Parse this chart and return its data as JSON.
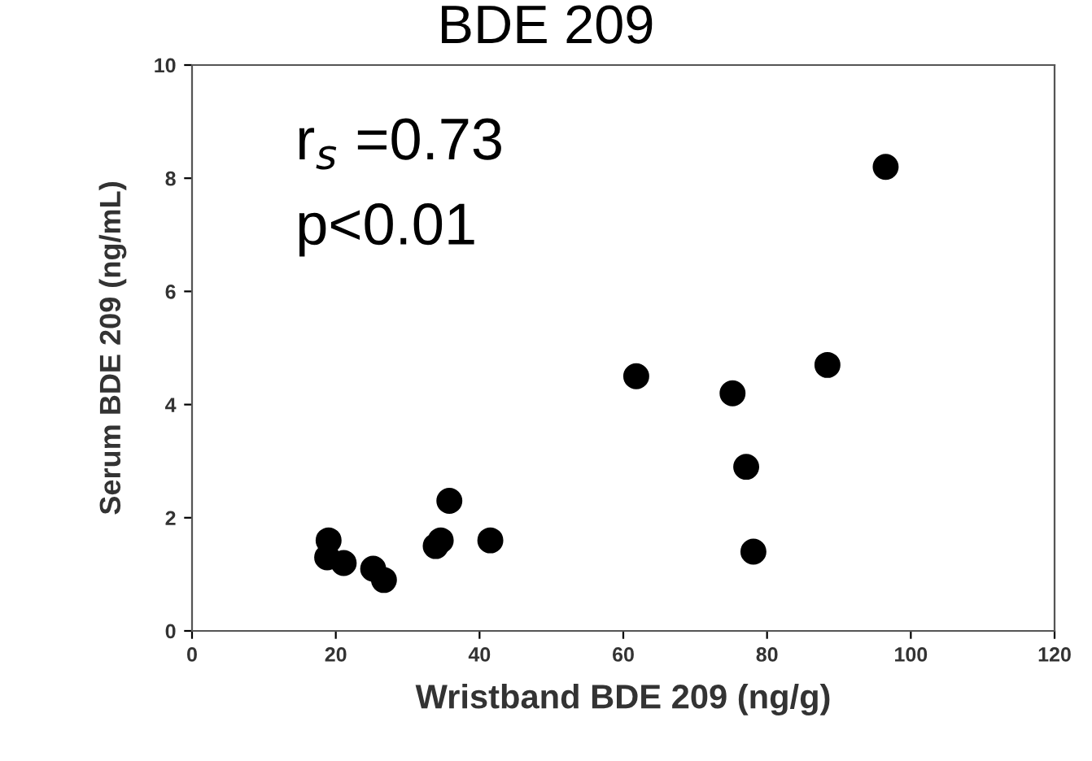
{
  "chart_data": {
    "type": "scatter",
    "title": "BDE 209",
    "xlabel": "Wristband BDE 209 (ng/g)",
    "ylabel": "Serum BDE 209 (ng/mL)",
    "annotations": [
      "r$_{s}$ =0.73",
      "p<0.01"
    ],
    "x": [
      19.0,
      18.8,
      21.1,
      25.2,
      26.7,
      33.9,
      34.6,
      35.8,
      41.5,
      61.8,
      75.2,
      77.1,
      78.1,
      88.4,
      96.5
    ],
    "values": [
      1.6,
      1.3,
      1.2,
      1.1,
      0.9,
      1.5,
      1.6,
      2.3,
      1.6,
      4.5,
      4.2,
      2.9,
      1.4,
      4.7,
      8.2
    ],
    "color": "#000000",
    "marker": "circle",
    "xlim": [
      0,
      120
    ],
    "xticks": [
      0,
      20,
      40,
      60,
      80,
      100,
      120
    ],
    "ylim": [
      0,
      10
    ],
    "yticks": [
      0,
      2,
      4,
      6,
      8,
      10
    ],
    "grid": false,
    "legend": false
  }
}
